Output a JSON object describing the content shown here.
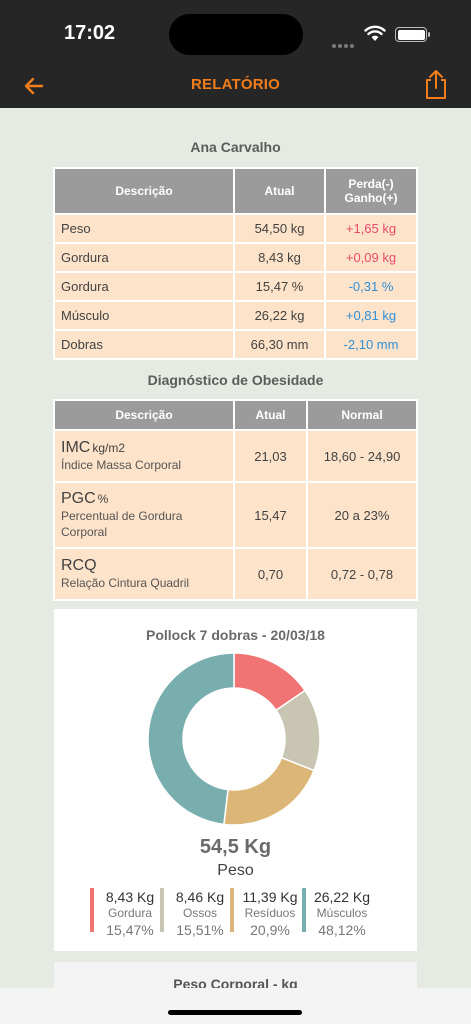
{
  "status_bar": {
    "time": "17:02"
  },
  "nav": {
    "title": "RELATÓRIO"
  },
  "patient": {
    "name": "Ana Carvalho"
  },
  "measures_table": {
    "headers": {
      "desc": "Descrição",
      "current": "Atual",
      "delta_line1": "Perda(-)",
      "delta_line2": "Ganho(+)"
    },
    "rows": [
      {
        "desc": "Peso",
        "current": "54,50 kg",
        "delta": "+1,65 kg"
      },
      {
        "desc": "Gordura",
        "current": "8,43 kg",
        "delta": "+0,09 kg"
      },
      {
        "desc": "Gordura",
        "current": "15,47 %",
        "delta": "-0,31 %"
      },
      {
        "desc": "Músculo",
        "current": "26,22 kg",
        "delta": "+0,81 kg"
      },
      {
        "desc": "Dobras",
        "current": "66,30 mm",
        "delta": "-2,10 mm"
      }
    ]
  },
  "obesity": {
    "title": "Diagnóstico de Obesidade",
    "headers": {
      "desc": "Descrição",
      "current": "Atual",
      "normal": "Normal"
    },
    "rows": [
      {
        "abbr": "IMC",
        "unit": "kg/m2",
        "name": "Índice Massa Corporal",
        "current": "21,03",
        "normal": "18,60 - 24,90"
      },
      {
        "abbr": "PGC",
        "unit": "%",
        "name": "Percentual de Gordura Corporal",
        "current": "15,47",
        "normal": "20 a 23%"
      },
      {
        "abbr": "RCQ",
        "unit": "",
        "name": "Relação Cintura Quadril",
        "current": "0,70",
        "normal": "0,72 - 0,78"
      }
    ]
  },
  "composition": {
    "title": "Pollock 7 dobras - 20/03/18",
    "total_value": "54,5 Kg",
    "total_label": "Peso",
    "legend": [
      {
        "value": "8,43 Kg",
        "name": "Gordura",
        "pct": "15,47%"
      },
      {
        "value": "8,46 Kg",
        "name": "Ossos",
        "pct": "15,51%"
      },
      {
        "value": "11,39 Kg",
        "name": "Resíduos",
        "pct": "20,9%"
      },
      {
        "value": "26,22 Kg",
        "name": "Músculos",
        "pct": "48,12%"
      }
    ]
  },
  "chart_data": {
    "type": "pie",
    "categories": [
      "Gordura",
      "Ossos",
      "Resíduos",
      "Músculos"
    ],
    "values": [
      15.47,
      15.51,
      20.9,
      48.12
    ],
    "colors": [
      "#f07474",
      "#c8c6b2",
      "#dcb677",
      "#79aeae"
    ],
    "title": "Pollock 7 dobras - 20/03/18"
  },
  "next_section": {
    "title": "Peso Corporal - kg"
  },
  "colors": {
    "accent": "#f27d1b",
    "loss": "#e94b6b",
    "gain": "#2e8fd6",
    "cell": "#fde3c9",
    "header": "#9b9b9b"
  }
}
